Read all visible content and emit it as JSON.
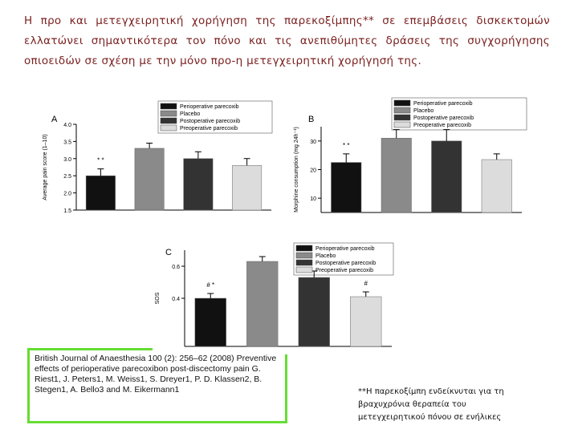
{
  "heading": "Η προ και μετεγχειρητική χορήγηση της παρεκοξίμπης** σε επεμβάσεις δισκεκτομών ελλατώνει σημαντικότερα τον πόνο και τις ανεπιθύμητες δράσεις της συγχορήγησης οπιοειδών σε σχέση με την μόνο προ-η μετεγχειρητική χορήγησή της.",
  "citation": "British Journal of Anaesthesia 100 (2): 256–62 (2008) Preventive effects of perioperative parecoxibon post-discectomy pain G. Riest1, J. Peters1, M. Weiss1, S. Dreyer1, P. D. Klassen2, B. Stegen1, A. Bello3 and M. Eikermann1",
  "note": "**Η παρεκοξίμπη ενδείκνυται για τη βραχυχρόνια θεραπεία του μετεγχειρητικού πόνου σε ενήλικες",
  "chart_data": [
    {
      "type": "bar",
      "title": "A",
      "y_label": "Average pain score (1–10)",
      "ylim": [
        1.5,
        4.0
      ],
      "yticks": [
        1.5,
        {
          "value": 2,
          "label": "2.0"
        },
        2.5,
        {
          "value": 3,
          "label": "3.0"
        },
        3.5,
        {
          "value": 4,
          "label": "4.0"
        }
      ],
      "series": [
        {
          "name": "Perioperative parecoxib",
          "color": "#111111",
          "values": [
            2.5
          ],
          "errors": [
            0.2
          ],
          "annotation": "* *"
        },
        {
          "name": "Placebo",
          "color": "#8a8a8a",
          "values": [
            3.3
          ],
          "errors": [
            0.15
          ]
        },
        {
          "name": "Postoperative parecoxib",
          "color": "#333333",
          "values": [
            3.0
          ],
          "errors": [
            0.2
          ]
        },
        {
          "name": "Preoperative parecoxib",
          "color": "#dcdcdc",
          "values": [
            2.8
          ],
          "errors": [
            0.2
          ]
        }
      ]
    },
    {
      "type": "bar",
      "title": "B",
      "y_label": "Morphine consumption (mg 24h⁻¹)",
      "ylim": [
        5,
        35
      ],
      "yticks": [
        10,
        20,
        30
      ],
      "series": [
        {
          "name": "Perioperative parecoxib",
          "color": "#111111",
          "values": [
            22.5
          ],
          "errors": [
            3
          ],
          "annotation": "* *"
        },
        {
          "name": "Placebo",
          "color": "#8a8a8a",
          "values": [
            31
          ],
          "errors": [
            3
          ]
        },
        {
          "name": "Postoperative parecoxib",
          "color": "#333333",
          "values": [
            30
          ],
          "errors": [
            4
          ]
        },
        {
          "name": "Preoperative parecoxib",
          "color": "#dcdcdc",
          "values": [
            23.5
          ],
          "errors": [
            2
          ]
        }
      ]
    },
    {
      "type": "bar",
      "title": "C",
      "y_label": "SOS",
      "ylim": [
        0.1,
        0.7
      ],
      "yticks": [
        0.4,
        0.6
      ],
      "series": [
        {
          "name": "Perioperative parecoxib",
          "color": "#111111",
          "values": [
            0.4
          ],
          "errors": [
            0.03
          ],
          "annotation": "# *"
        },
        {
          "name": "Placebo",
          "color": "#8a8a8a",
          "values": [
            0.63
          ],
          "errors": [
            0.03
          ]
        },
        {
          "name": "Postoperative parecoxib",
          "color": "#333333",
          "values": [
            0.53
          ],
          "errors": [
            0.04
          ]
        },
        {
          "name": "Preoperative parecoxib",
          "color": "#dcdcdc",
          "values": [
            0.41
          ],
          "errors": [
            0.03
          ],
          "annotation": "#"
        }
      ]
    }
  ]
}
